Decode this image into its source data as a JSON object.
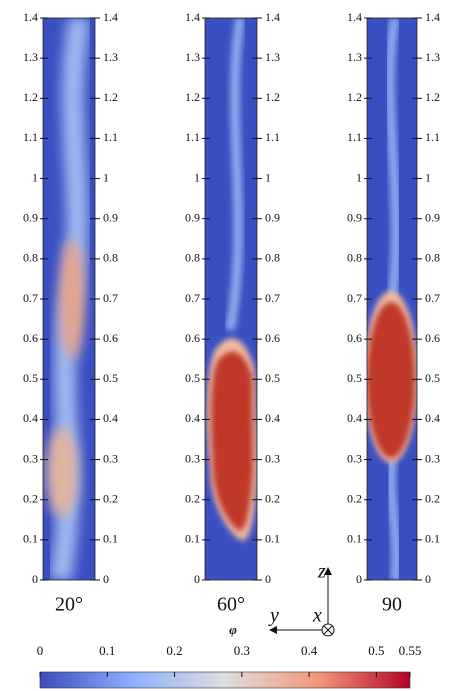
{
  "chart_data": {
    "type": "contour",
    "panels": [
      {
        "label": "20°"
      },
      {
        "label": "60°"
      },
      {
        "label": "90"
      }
    ],
    "ylim": [
      0,
      1.4
    ],
    "yticks": [
      0,
      0.1,
      0.2,
      0.3,
      0.4,
      0.5,
      0.6,
      0.7,
      0.8,
      0.9,
      1,
      1.1,
      1.2,
      1.3,
      1.4
    ],
    "colorbar": {
      "label": "φ",
      "lim": [
        0,
        0.55
      ],
      "ticks": [
        0,
        0.1,
        0.2,
        0.3,
        0.4,
        0.5,
        0.55
      ],
      "colors": [
        "#3b4cc0",
        "#8db0fe",
        "#dddddd",
        "#f4987a",
        "#b40426"
      ]
    },
    "axes_triad": {
      "z": "z",
      "y": "y",
      "x": "x"
    }
  }
}
